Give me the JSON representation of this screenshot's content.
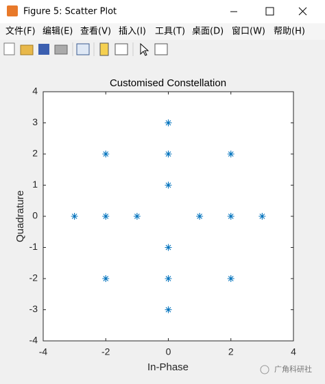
{
  "window": {
    "title": "Figure 5: Scatter Plot",
    "menu": [
      "文件(F)",
      "编辑(E)",
      "查看(V)",
      "插入(I)",
      "工具(T)",
      "桌面(D)",
      "窗口(W)",
      "帮助(H)"
    ]
  },
  "chart_data": {
    "type": "scatter",
    "title": "Customised Constellation",
    "x_label": "In-Phase",
    "y_label": "Quadrature",
    "x": [
      -3,
      -2,
      -1,
      1,
      2,
      3,
      0,
      0,
      0,
      0,
      0,
      0,
      -2,
      2,
      -2,
      2
    ],
    "values": [
      0,
      0,
      0,
      0,
      0,
      0,
      3,
      2,
      1,
      -1,
      -2,
      -3,
      2,
      2,
      -2,
      -2
    ],
    "color": "#0072bd",
    "xlim": [
      -4,
      4
    ],
    "ylim": [
      -4,
      4
    ],
    "xticks": [
      -4,
      -2,
      0,
      2,
      4
    ],
    "yticks": [
      -4,
      -3,
      -2,
      -1,
      0,
      1,
      2,
      3,
      4
    ]
  },
  "watermark": "广角科研社"
}
